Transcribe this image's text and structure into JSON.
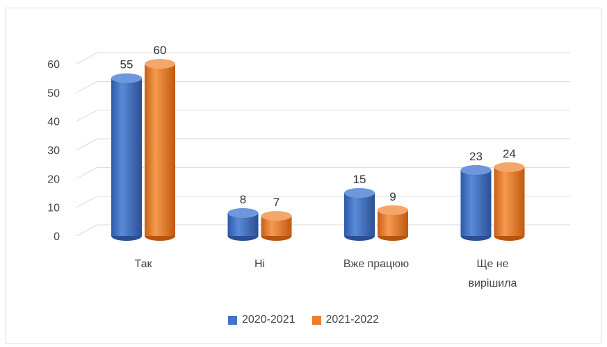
{
  "chart_data": {
    "type": "bar",
    "title": "",
    "xlabel": "",
    "ylabel": "",
    "categories": [
      "Так",
      "Ні",
      "Вже працюю",
      "Ще не вирішила"
    ],
    "series": [
      {
        "name": "2020-2021",
        "values": [
          55,
          8,
          15,
          23
        ],
        "color": "#4472C4"
      },
      {
        "name": "2021-2022",
        "values": [
          60,
          7,
          9,
          24
        ],
        "color": "#ED7D31"
      }
    ],
    "ylim": [
      0,
      60
    ],
    "yticks": [
      0,
      10,
      20,
      30,
      40,
      50,
      60
    ],
    "grid": true,
    "legend_position": "bottom",
    "style": "3d-cylinder"
  }
}
